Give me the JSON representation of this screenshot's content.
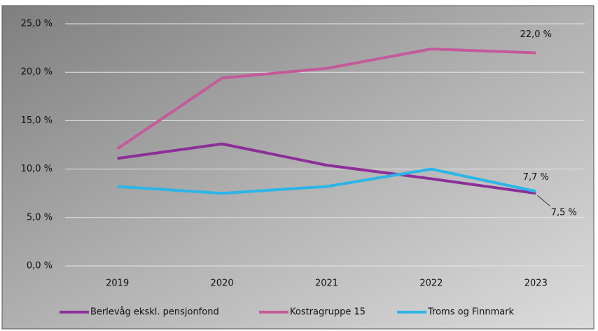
{
  "chart_data": {
    "type": "line",
    "categories": [
      "2019",
      "2020",
      "2021",
      "2022",
      "2023"
    ],
    "series": [
      {
        "name": "Berlevåg ekskl. pensjonfond",
        "color": "#8b2f97",
        "values": [
          11.1,
          12.6,
          10.4,
          9.0,
          7.5
        ],
        "value_labels": [
          null,
          null,
          null,
          null,
          "7,5 %"
        ]
      },
      {
        "name": "Kostragruppe 15",
        "color": "#c45a9a",
        "values": [
          12.1,
          19.4,
          20.4,
          22.4,
          22.0
        ],
        "value_labels": [
          null,
          null,
          null,
          null,
          "22,0 %"
        ]
      },
      {
        "name": "Troms og Finnmark",
        "color": "#2bb5e8",
        "values": [
          8.2,
          7.5,
          8.2,
          10.0,
          7.7
        ],
        "value_labels": [
          null,
          null,
          null,
          null,
          "7,7 %"
        ]
      }
    ],
    "ylim": [
      0,
      25
    ],
    "yticks": [
      {
        "value": 0,
        "label": "0,0 %"
      },
      {
        "value": 5,
        "label": "5,0 %"
      },
      {
        "value": 10,
        "label": "10,0 %"
      },
      {
        "value": 15,
        "label": "15,0 %"
      },
      {
        "value": 20,
        "label": "20,0 %"
      },
      {
        "value": 25,
        "label": "25,0 %"
      }
    ],
    "grid": true,
    "legend": "bottom"
  }
}
